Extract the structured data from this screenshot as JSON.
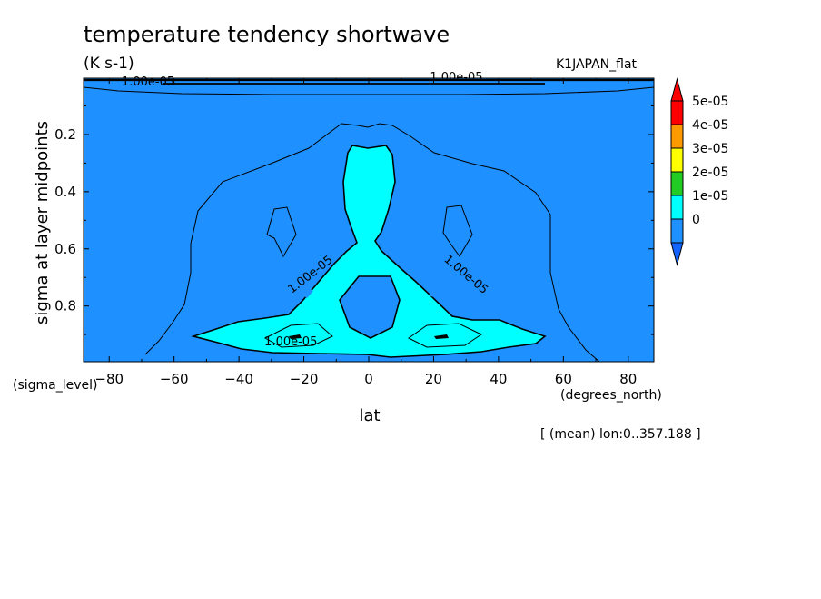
{
  "chart_data": {
    "type": "contour",
    "title": "temperature tendency shortwave",
    "units": "(K s-1)",
    "dataset": "K1JAPAN_flat",
    "xlabel": "lat",
    "xunits": "(degrees_north)",
    "ylabel": "sigma at layer midpoints",
    "yunits": "(sigma_level)",
    "footnote": "[ (mean) lon:0..357.188 ]",
    "xlim": [
      -87.9,
      87.9
    ],
    "ylim": [
      0.995,
      0.003
    ],
    "xticks": [
      -80,
      -60,
      -40,
      -20,
      0,
      20,
      40,
      60,
      80
    ],
    "yticks": [
      0.2,
      0.4,
      0.6,
      0.8
    ],
    "ytick_labels": [
      "0.2",
      "0.4",
      "0.6",
      "0.8"
    ],
    "contour_labels": [
      {
        "text": "1.00e-05",
        "x": -24,
        "y": 0.925,
        "angle": 0
      },
      {
        "text": "1.00e-05",
        "x": -18,
        "y": 0.69,
        "angle": -38
      },
      {
        "text": "1.00e-05",
        "x": 30,
        "y": 0.69,
        "angle": 40
      },
      {
        "text": "1.00e-05",
        "x": -68,
        "y": 0.016,
        "angle": 0
      },
      {
        "text": "1.00e-05",
        "x": 27,
        "y": 0.0,
        "angle": 0
      }
    ],
    "legend": {
      "levels": [
        "5e-05",
        "4e-05",
        "3e-05",
        "2e-05",
        "1e-05",
        "0"
      ],
      "colors": [
        "#1e90ff",
        "#00ffff",
        "#22cc22",
        "#ffff00",
        "#ff9900",
        "#ff0000"
      ],
      "under_color": "#1464ff",
      "over_color": "#ff0000"
    },
    "fill_colors": {
      "base": "#1e90ff",
      "level1": "#00ffff"
    }
  }
}
